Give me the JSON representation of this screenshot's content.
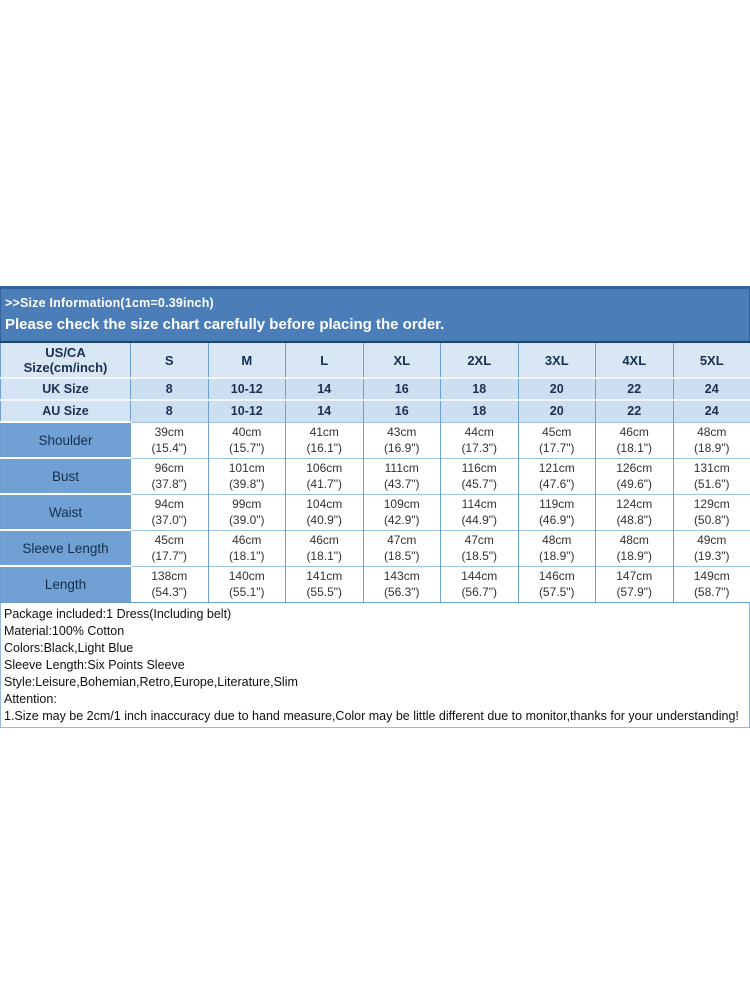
{
  "banner": {
    "title": ">>Size Information(1cm=0.39inch)",
    "subtitle": "Please check the size chart carefully before placing the order."
  },
  "size_table": {
    "corner_header": [
      "US/CA",
      "Size(cm/inch)"
    ],
    "sizes": [
      "S",
      "M",
      "L",
      "XL",
      "2XL",
      "3XL",
      "4XL",
      "5XL"
    ],
    "conversion_rows": [
      {
        "label": "UK Size",
        "values": [
          "8",
          "10-12",
          "14",
          "16",
          "18",
          "20",
          "22",
          "24"
        ]
      },
      {
        "label": "AU Size",
        "values": [
          "8",
          "10-12",
          "14",
          "16",
          "18",
          "20",
          "22",
          "24"
        ]
      }
    ],
    "measurement_rows": [
      {
        "label": "Shoulder",
        "cm": [
          "39cm",
          "40cm",
          "41cm",
          "43cm",
          "44cm",
          "45cm",
          "46cm",
          "48cm"
        ],
        "inch": [
          "(15.4\")",
          "(15.7\")",
          "(16.1\")",
          "(16.9\")",
          "(17.3\")",
          "(17.7\")",
          "(18.1\")",
          "(18.9\")"
        ]
      },
      {
        "label": "Bust",
        "cm": [
          "96cm",
          "101cm",
          "106cm",
          "111cm",
          "116cm",
          "121cm",
          "126cm",
          "131cm"
        ],
        "inch": [
          "(37.8\")",
          "(39.8\")",
          "(41.7\")",
          "(43.7\")",
          "(45.7\")",
          "(47.6\")",
          "(49.6\")",
          "(51.6\")"
        ]
      },
      {
        "label": "Waist",
        "cm": [
          "94cm",
          "99cm",
          "104cm",
          "109cm",
          "114cm",
          "119cm",
          "124cm",
          "129cm"
        ],
        "inch": [
          "(37.0\")",
          "(39.0\")",
          "(40.9\")",
          "(42.9\")",
          "(44.9\")",
          "(46.9\")",
          "(48.8\")",
          "(50.8\")"
        ]
      },
      {
        "label": "Sleeve Length",
        "cm": [
          "45cm",
          "46cm",
          "46cm",
          "47cm",
          "47cm",
          "48cm",
          "48cm",
          "49cm"
        ],
        "inch": [
          "(17.7\")",
          "(18.1\")",
          "(18.1\")",
          "(18.5\")",
          "(18.5\")",
          "(18.9\")",
          "(18.9\")",
          "(19.3\")"
        ]
      },
      {
        "label": "Length",
        "cm": [
          "138cm",
          "140cm",
          "141cm",
          "143cm",
          "144cm",
          "146cm",
          "147cm",
          "149cm"
        ],
        "inch": [
          "(54.3\")",
          "(55.1\")",
          "(55.5\")",
          "(56.3\")",
          "(56.7\")",
          "(57.5\")",
          "(57.9\")",
          "(58.7\")"
        ]
      }
    ]
  },
  "details": {
    "lines": [
      "Package included:1 Dress(Including belt)",
      "Material:100% Cotton",
      "Colors:Black,Light Blue",
      "Sleeve Length:Six Points Sleeve",
      "Style:Leisure,Bohemian,Retro,Europe,Literature,Slim",
      "Attention:",
      "1.Size may be 2cm/1 inch inaccuracy due to hand measure,Color may be little different due to monitor,thanks for your understanding!"
    ]
  },
  "colors": {
    "banner_background": "#4b7db9",
    "banner_border": "#33639c",
    "header_cell_background": "#d9e7f5",
    "conversion_row_background": "#cbdff1",
    "measurement_label_background": "#70a0d4",
    "table_border": "#6fa0cd",
    "header_text": "#1a2e4f",
    "data_text": "#333333",
    "banner_text": "#ffffff"
  }
}
